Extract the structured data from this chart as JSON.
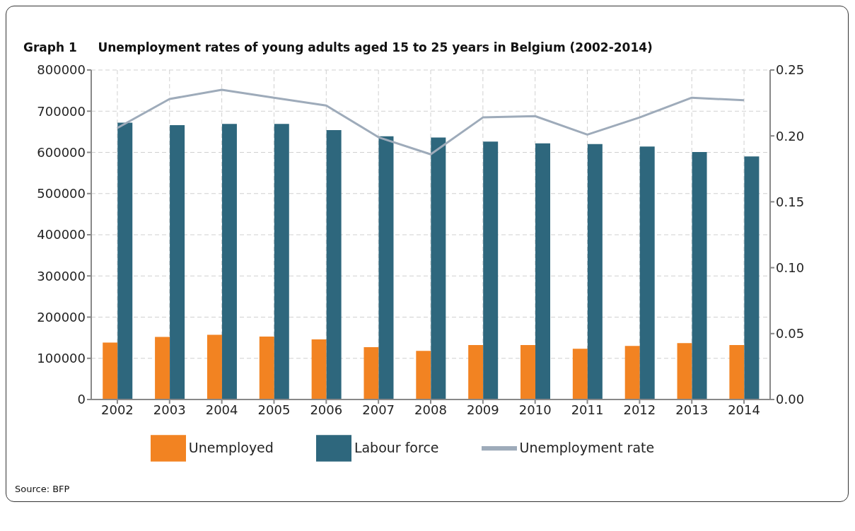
{
  "chart_data": {
    "type": "bar",
    "title": "Graph 1     Unemployment rates of young adults aged 15 to 25 years in Belgium (2002-2014)",
    "categories": [
      "2002",
      "2003",
      "2004",
      "2005",
      "2006",
      "2007",
      "2008",
      "2009",
      "2010",
      "2011",
      "2012",
      "2013",
      "2014"
    ],
    "series": [
      {
        "name": "Unemployed",
        "color": "#f28322",
        "values": [
          138000,
          152000,
          157000,
          153000,
          146000,
          127000,
          118000,
          132000,
          132000,
          123000,
          130000,
          137000,
          132000
        ]
      },
      {
        "name": "Labour force",
        "color": "#2e677d",
        "values": [
          672000,
          666000,
          669000,
          669000,
          654000,
          639000,
          636000,
          626000,
          622000,
          620000,
          614000,
          601000,
          590000
        ]
      },
      {
        "name": "Unemployment rate",
        "type": "line",
        "axis": "y2",
        "color": "#9eabba",
        "values": [
          0.206,
          0.228,
          0.235,
          0.229,
          0.223,
          0.199,
          0.186,
          0.214,
          0.215,
          0.201,
          0.214,
          0.229,
          0.227
        ]
      }
    ],
    "ylim": [
      0,
      800000
    ],
    "yticks": [
      0,
      100000,
      200000,
      300000,
      400000,
      500000,
      600000,
      700000,
      800000
    ],
    "y2lim": [
      0,
      0.25
    ],
    "y2ticks": [
      {
        "value": 0,
        "label": "0.00"
      },
      {
        "value": 0.05,
        "label": "0.05"
      },
      {
        "value": 0.1,
        "label": "0.10"
      },
      {
        "value": 0.15,
        "label": "0.15"
      },
      {
        "value": 0.2,
        "label": "0.20"
      },
      {
        "value": 0.25,
        "label": "0.25"
      }
    ],
    "grid": true,
    "legend": "bottom",
    "marker": "none",
    "line_style": "solid",
    "annotations": [
      "Source: BFP"
    ]
  }
}
